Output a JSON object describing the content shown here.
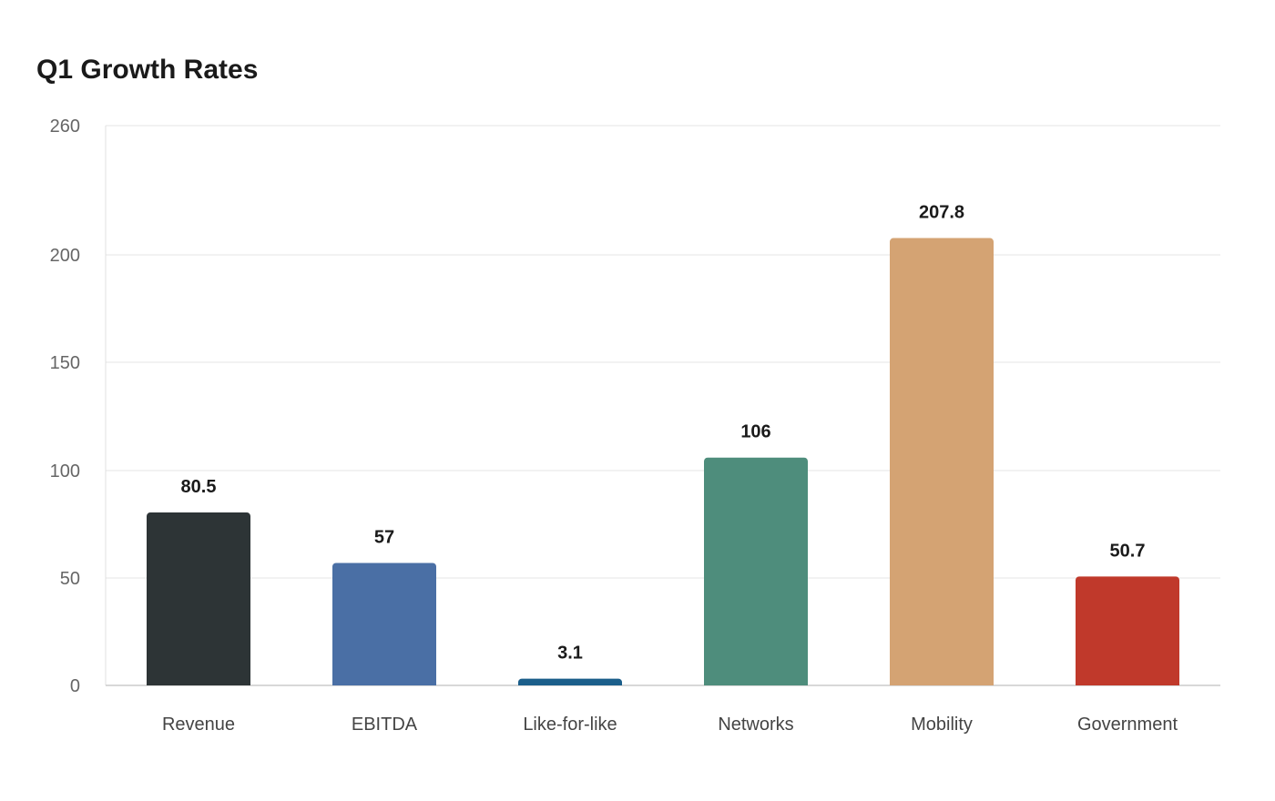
{
  "chart_data": {
    "type": "bar",
    "title": "Q1 Growth Rates",
    "xlabel": "",
    "ylabel": "",
    "categories": [
      "Revenue",
      "EBITDA",
      "Like-for-like",
      "Networks",
      "Mobility",
      "Government"
    ],
    "values": [
      80.5,
      57,
      3.1,
      106,
      207.8,
      50.7
    ],
    "value_labels": [
      "80.5",
      "57",
      "3.1",
      "106",
      "207.8",
      "50.7"
    ],
    "colors": [
      "#2d3436",
      "#4a6fa5",
      "#1b5e8a",
      "#4e8d7c",
      "#d4a373",
      "#c0392b"
    ],
    "y_ticks": [
      0,
      50,
      100,
      150,
      200,
      260
    ],
    "ylim": [
      0,
      260
    ],
    "grid": true,
    "legend": "none"
  }
}
